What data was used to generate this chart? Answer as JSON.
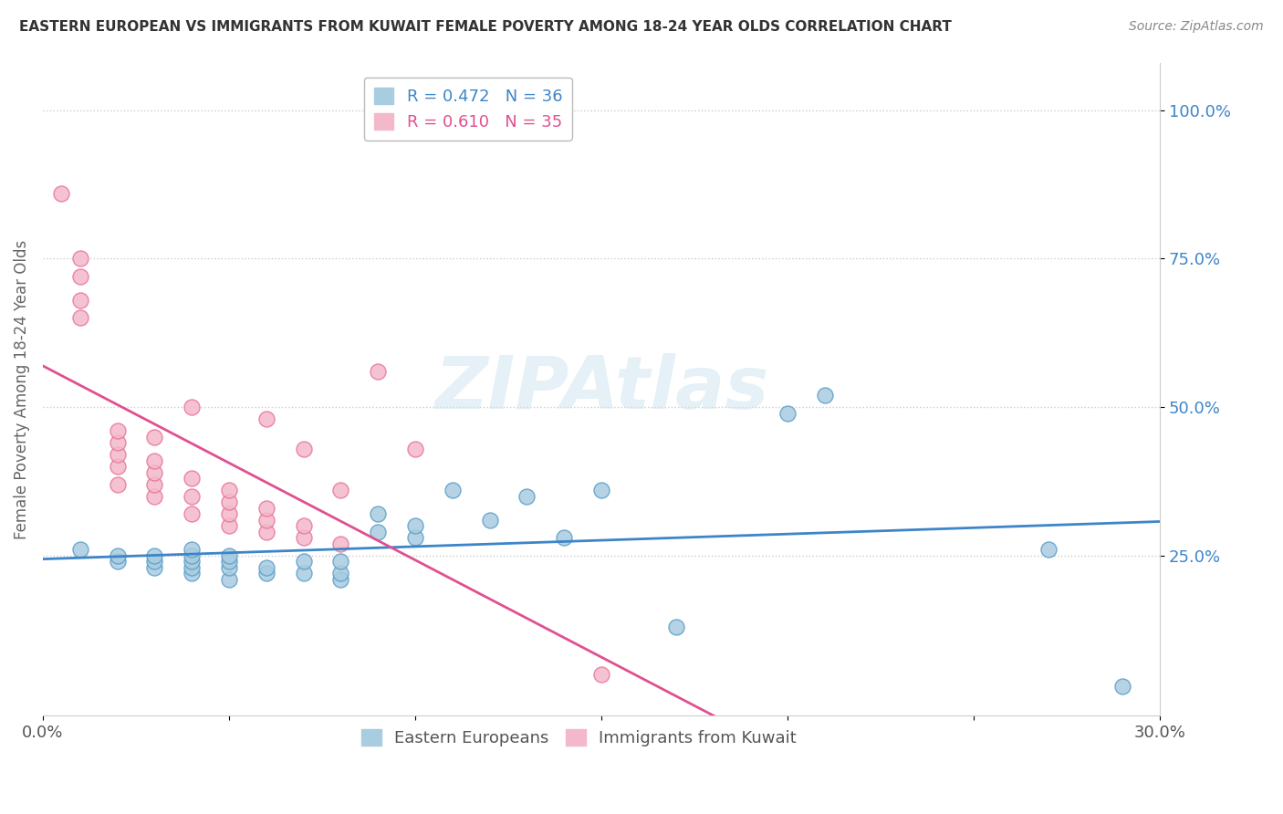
{
  "title": "EASTERN EUROPEAN VS IMMIGRANTS FROM KUWAIT FEMALE POVERTY AMONG 18-24 YEAR OLDS CORRELATION CHART",
  "source": "Source: ZipAtlas.com",
  "ylabel": "Female Poverty Among 18-24 Year Olds",
  "xlim": [
    0.0,
    0.3
  ],
  "ylim": [
    -0.02,
    1.08
  ],
  "ytick_values": [
    0.25,
    0.5,
    0.75,
    1.0
  ],
  "ytick_labels": [
    "25.0%",
    "50.0%",
    "75.0%",
    "100.0%"
  ],
  "xtick_values": [
    0.0,
    0.05,
    0.1,
    0.15,
    0.2,
    0.25,
    0.3
  ],
  "xtick_labels": [
    "0.0%",
    "",
    "",
    "",
    "",
    "",
    "30.0%"
  ],
  "blue_R": 0.472,
  "blue_N": 36,
  "pink_R": 0.61,
  "pink_N": 35,
  "blue_color": "#a8cce0",
  "pink_color": "#f4b8cb",
  "blue_edge_color": "#5b9ec9",
  "pink_edge_color": "#e8749a",
  "blue_line_color": "#3d85c8",
  "pink_line_color": "#e05090",
  "watermark": "ZIPAtlas",
  "blue_scatter_x": [
    0.01,
    0.02,
    0.02,
    0.03,
    0.03,
    0.03,
    0.04,
    0.04,
    0.04,
    0.04,
    0.04,
    0.05,
    0.05,
    0.05,
    0.05,
    0.06,
    0.06,
    0.07,
    0.07,
    0.08,
    0.08,
    0.08,
    0.09,
    0.09,
    0.1,
    0.1,
    0.11,
    0.12,
    0.13,
    0.14,
    0.15,
    0.17,
    0.2,
    0.21,
    0.27,
    0.29
  ],
  "blue_scatter_y": [
    0.26,
    0.24,
    0.25,
    0.23,
    0.24,
    0.25,
    0.22,
    0.23,
    0.24,
    0.25,
    0.26,
    0.21,
    0.23,
    0.24,
    0.25,
    0.22,
    0.23,
    0.22,
    0.24,
    0.21,
    0.22,
    0.24,
    0.29,
    0.32,
    0.28,
    0.3,
    0.36,
    0.31,
    0.35,
    0.28,
    0.36,
    0.13,
    0.49,
    0.52,
    0.26,
    0.03
  ],
  "pink_scatter_x": [
    0.005,
    0.01,
    0.01,
    0.01,
    0.01,
    0.02,
    0.02,
    0.02,
    0.02,
    0.02,
    0.03,
    0.03,
    0.03,
    0.03,
    0.03,
    0.04,
    0.04,
    0.04,
    0.04,
    0.05,
    0.05,
    0.05,
    0.05,
    0.06,
    0.06,
    0.06,
    0.06,
    0.07,
    0.07,
    0.07,
    0.08,
    0.08,
    0.09,
    0.1,
    0.15
  ],
  "pink_scatter_y": [
    0.86,
    0.65,
    0.68,
    0.72,
    0.75,
    0.37,
    0.4,
    0.42,
    0.44,
    0.46,
    0.35,
    0.37,
    0.39,
    0.41,
    0.45,
    0.32,
    0.35,
    0.38,
    0.5,
    0.3,
    0.32,
    0.34,
    0.36,
    0.29,
    0.31,
    0.33,
    0.48,
    0.28,
    0.3,
    0.43,
    0.27,
    0.36,
    0.56,
    0.43,
    0.05
  ],
  "background_color": "#ffffff",
  "grid_color": "#cccccc"
}
